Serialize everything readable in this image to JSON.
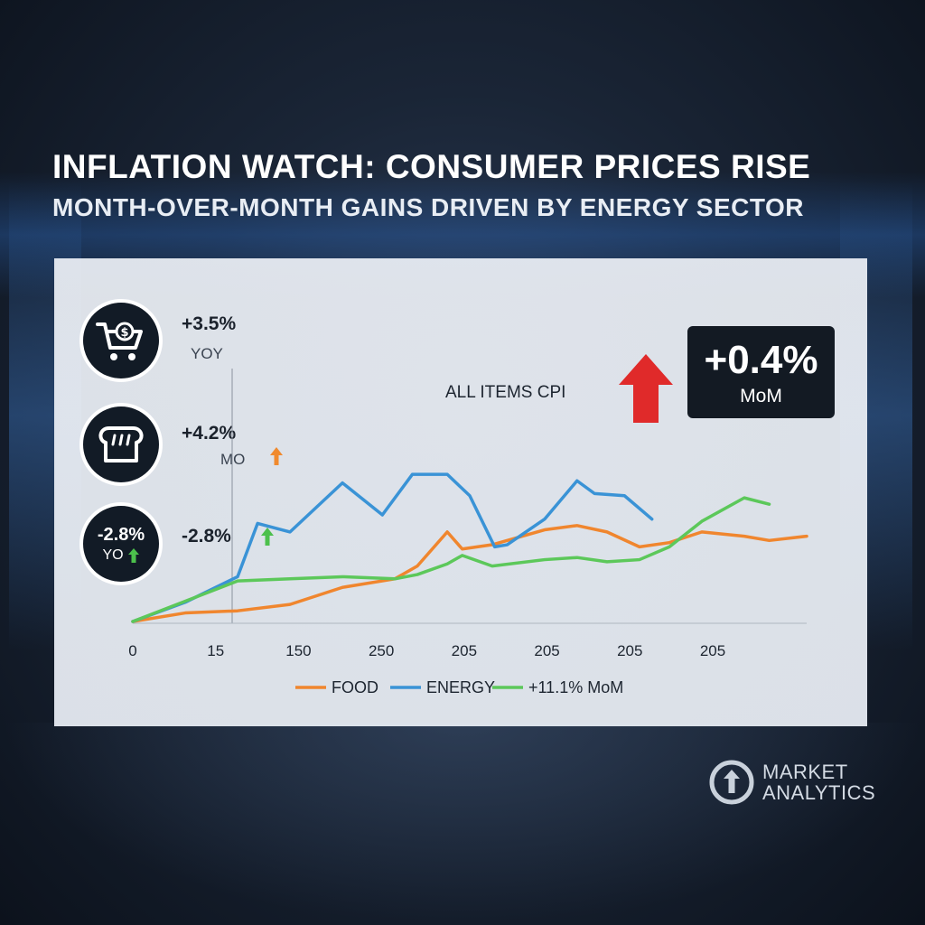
{
  "headline": "INFLATION WATCH: CONSUMER PRICES RISE",
  "subhead": "MONTH-OVER-MONTH GAINS DRIVEN BY ENERGY SECTOR",
  "kpis": [
    {
      "icon": "shopping-cart-icon",
      "value": "+3.5%",
      "label": "YOY"
    },
    {
      "icon": "bread-icon",
      "value": "+4.2%",
      "label": "MO",
      "arrow_color": "#f08a2e"
    },
    {
      "icon_value": "-2.8%",
      "icon_label": "YO",
      "value": "-2.8%",
      "label": "",
      "arrow_color": "#4cc04c"
    }
  ],
  "chart_label": "ALL ITEMS CPI",
  "badge": {
    "value": "+0.4%",
    "label": "MoM"
  },
  "logo": {
    "line1": "MARKET",
    "line2": "ANALYTICS"
  },
  "colors": {
    "food": "#f0862e",
    "energy": "#3a93d6",
    "mom": "#5cc85a",
    "arrow_up": "#e02a2a"
  },
  "chart_data": {
    "type": "line",
    "title": "ALL ITEMS CPI",
    "x_ticks": [
      "0",
      "15",
      "150",
      "250",
      "205",
      "205",
      "205",
      "205"
    ],
    "x": [
      0,
      1,
      2,
      3,
      4,
      5,
      6,
      7,
      8,
      9,
      10,
      11,
      12,
      13,
      14,
      15,
      16,
      17,
      18,
      19,
      20,
      21,
      22,
      23,
      24,
      25,
      26,
      27
    ],
    "ylim": [
      0,
      100
    ],
    "series": [
      {
        "name": "FOOD",
        "color": "#f0862e",
        "points": [
          [
            0,
            0
          ],
          [
            2.1,
            4
          ],
          [
            4.2,
            5
          ],
          [
            6.3,
            8
          ],
          [
            8.4,
            16
          ],
          [
            10.5,
            20
          ],
          [
            11.4,
            26
          ],
          [
            12.6,
            42
          ],
          [
            13.2,
            34
          ],
          [
            14.4,
            36
          ],
          [
            16.5,
            43
          ],
          [
            17.8,
            45
          ],
          [
            19.0,
            42
          ],
          [
            20.3,
            35
          ],
          [
            21.5,
            37
          ],
          [
            22.8,
            42
          ],
          [
            24.5,
            40
          ],
          [
            25.5,
            38
          ],
          [
            27.0,
            40
          ]
        ]
      },
      {
        "name": "ENERGY",
        "color": "#3a93d6",
        "points": [
          [
            0,
            0
          ],
          [
            2.1,
            9
          ],
          [
            4.2,
            21
          ],
          [
            5.0,
            46
          ],
          [
            6.3,
            42
          ],
          [
            8.4,
            65
          ],
          [
            10.0,
            50
          ],
          [
            11.2,
            69
          ],
          [
            12.6,
            69
          ],
          [
            13.5,
            59
          ],
          [
            14.5,
            35
          ],
          [
            15.0,
            36
          ],
          [
            16.5,
            48
          ],
          [
            17.8,
            66
          ],
          [
            18.5,
            60
          ],
          [
            19.7,
            59
          ],
          [
            20.8,
            48
          ]
        ]
      },
      {
        "name": "+11.1% MoM",
        "color": "#5cc85a",
        "points": [
          [
            0,
            0
          ],
          [
            4.2,
            19
          ],
          [
            6.3,
            20
          ],
          [
            8.4,
            21
          ],
          [
            10.5,
            20
          ],
          [
            11.4,
            22
          ],
          [
            12.6,
            27
          ],
          [
            13.2,
            31
          ],
          [
            14.4,
            26
          ],
          [
            16.5,
            29
          ],
          [
            17.8,
            30
          ],
          [
            19.0,
            28
          ],
          [
            20.3,
            29
          ],
          [
            21.5,
            35
          ],
          [
            22.8,
            47
          ],
          [
            24.5,
            58
          ],
          [
            25.5,
            55
          ]
        ]
      }
    ]
  }
}
